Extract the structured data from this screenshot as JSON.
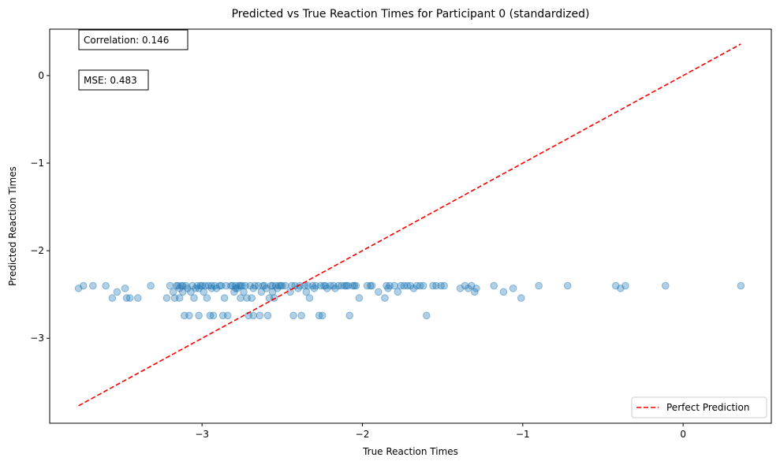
{
  "chart_data": {
    "type": "scatter",
    "title": "Predicted vs True Reaction Times for Participant 0 (standardized)",
    "xlabel": "True Reaction Times",
    "ylabel": "Predicted Reaction Times",
    "xlim": [
      -3.95,
      0.55
    ],
    "ylim": [
      -3.97,
      0.53
    ],
    "xticks": [
      -3,
      -2,
      -1,
      0
    ],
    "yticks": [
      0,
      -1,
      -2,
      -3
    ],
    "tick_labels": {
      "x": [
        "−3",
        "−2",
        "−1",
        "0"
      ],
      "y": [
        "0",
        "−1",
        "−2",
        "−3"
      ]
    },
    "grid": false,
    "legend_position": "lower-right",
    "colors": {
      "points": "#1f77b4",
      "line": "#ff0000",
      "axes": "#000000"
    },
    "annotations": [
      "Correlation: 0.146",
      "MSE: 0.483"
    ],
    "series": [
      {
        "name": "",
        "style": "scatter",
        "points": [
          [
            -3.77,
            -2.43
          ],
          [
            -3.74,
            -2.4
          ],
          [
            -3.68,
            -2.4
          ],
          [
            -3.6,
            -2.4
          ],
          [
            -3.56,
            -2.54
          ],
          [
            -3.53,
            -2.47
          ],
          [
            -3.48,
            -2.43
          ],
          [
            -3.47,
            -2.54
          ],
          [
            -3.45,
            -2.54
          ],
          [
            -3.4,
            -2.54
          ],
          [
            -3.32,
            -2.4
          ],
          [
            -3.22,
            -2.54
          ],
          [
            -3.2,
            -2.4
          ],
          [
            -3.18,
            -2.47
          ],
          [
            -3.17,
            -2.54
          ],
          [
            -3.16,
            -2.4
          ],
          [
            -3.15,
            -2.4
          ],
          [
            -3.14,
            -2.43
          ],
          [
            -3.14,
            -2.54
          ],
          [
            -3.13,
            -2.4
          ],
          [
            -3.12,
            -2.47
          ],
          [
            -3.11,
            -2.74
          ],
          [
            -3.1,
            -2.4
          ],
          [
            -3.09,
            -2.43
          ],
          [
            -3.08,
            -2.74
          ],
          [
            -3.07,
            -2.47
          ],
          [
            -3.06,
            -2.4
          ],
          [
            -3.05,
            -2.54
          ],
          [
            -3.04,
            -2.43
          ],
          [
            -3.03,
            -2.4
          ],
          [
            -3.02,
            -2.74
          ],
          [
            -3.01,
            -2.4
          ],
          [
            -3.0,
            -2.4
          ],
          [
            -2.99,
            -2.47
          ],
          [
            -2.98,
            -2.4
          ],
          [
            -2.97,
            -2.54
          ],
          [
            -2.96,
            -2.4
          ],
          [
            -2.95,
            -2.74
          ],
          [
            -2.94,
            -2.43
          ],
          [
            -2.93,
            -2.74
          ],
          [
            -2.92,
            -2.4
          ],
          [
            -2.91,
            -2.43
          ],
          [
            -2.89,
            -2.4
          ],
          [
            -2.87,
            -2.74
          ],
          [
            -2.86,
            -2.54
          ],
          [
            -2.85,
            -2.4
          ],
          [
            -2.84,
            -2.74
          ],
          [
            -2.82,
            -2.4
          ],
          [
            -2.8,
            -2.47
          ],
          [
            -2.79,
            -2.4
          ],
          [
            -2.78,
            -2.43
          ],
          [
            -2.77,
            -2.4
          ],
          [
            -2.76,
            -2.54
          ],
          [
            -2.75,
            -2.4
          ],
          [
            -2.74,
            -2.47
          ],
          [
            -2.73,
            -2.4
          ],
          [
            -2.72,
            -2.54
          ],
          [
            -2.71,
            -2.74
          ],
          [
            -2.7,
            -2.4
          ],
          [
            -2.69,
            -2.54
          ],
          [
            -2.68,
            -2.74
          ],
          [
            -2.67,
            -2.4
          ],
          [
            -2.65,
            -2.4
          ],
          [
            -2.64,
            -2.74
          ],
          [
            -2.63,
            -2.47
          ],
          [
            -2.61,
            -2.4
          ],
          [
            -2.6,
            -2.43
          ],
          [
            -2.59,
            -2.74
          ],
          [
            -2.58,
            -2.54
          ],
          [
            -2.57,
            -2.4
          ],
          [
            -2.56,
            -2.47
          ],
          [
            -2.55,
            -2.54
          ],
          [
            -2.54,
            -2.4
          ],
          [
            -2.53,
            -2.43
          ],
          [
            -2.52,
            -2.4
          ],
          [
            -2.51,
            -2.4
          ],
          [
            -2.5,
            -2.4
          ],
          [
            -2.45,
            -2.47
          ],
          [
            -2.43,
            -2.74
          ],
          [
            -2.42,
            -2.4
          ],
          [
            -2.4,
            -2.43
          ],
          [
            -2.38,
            -2.74
          ],
          [
            -2.36,
            -2.4
          ],
          [
            -2.35,
            -2.47
          ],
          [
            -2.34,
            -2.4
          ],
          [
            -2.33,
            -2.54
          ],
          [
            -2.31,
            -2.4
          ],
          [
            -2.29,
            -2.4
          ],
          [
            -2.27,
            -2.74
          ],
          [
            -2.26,
            -2.4
          ],
          [
            -2.25,
            -2.74
          ],
          [
            -2.24,
            -2.4
          ],
          [
            -2.22,
            -2.43
          ],
          [
            -2.2,
            -2.4
          ],
          [
            -2.18,
            -2.4
          ],
          [
            -2.15,
            -2.4
          ],
          [
            -2.13,
            -2.4
          ],
          [
            -2.11,
            -2.4
          ],
          [
            -2.09,
            -2.4
          ],
          [
            -2.08,
            -2.74
          ],
          [
            -2.06,
            -2.4
          ],
          [
            -2.04,
            -2.4
          ],
          [
            -2.02,
            -2.54
          ],
          [
            -1.97,
            -2.4
          ],
          [
            -1.94,
            -2.4
          ],
          [
            -1.9,
            -2.47
          ],
          [
            -1.86,
            -2.54
          ],
          [
            -1.85,
            -2.4
          ],
          [
            -1.83,
            -2.4
          ],
          [
            -1.8,
            -2.4
          ],
          [
            -1.78,
            -2.47
          ],
          [
            -1.76,
            -2.4
          ],
          [
            -1.72,
            -2.4
          ],
          [
            -1.7,
            -2.4
          ],
          [
            -1.66,
            -2.4
          ],
          [
            -1.64,
            -2.4
          ],
          [
            -1.62,
            -2.4
          ],
          [
            -1.6,
            -2.74
          ],
          [
            -1.56,
            -2.4
          ],
          [
            -1.54,
            -2.4
          ],
          [
            -1.51,
            -2.4
          ],
          [
            -1.49,
            -2.4
          ],
          [
            -1.39,
            -2.43
          ],
          [
            -1.36,
            -2.4
          ],
          [
            -1.34,
            -2.43
          ],
          [
            -1.32,
            -2.4
          ],
          [
            -1.3,
            -2.47
          ],
          [
            -1.29,
            -2.43
          ],
          [
            -1.18,
            -2.4
          ],
          [
            -1.12,
            -2.47
          ],
          [
            -1.06,
            -2.43
          ],
          [
            -1.01,
            -2.54
          ],
          [
            -0.9,
            -2.4
          ],
          [
            -0.72,
            -2.4
          ],
          [
            -0.42,
            -2.4
          ],
          [
            -0.39,
            -2.43
          ],
          [
            -0.36,
            -2.4
          ],
          [
            -0.11,
            -2.4
          ],
          [
            0.36,
            -2.4
          ],
          [
            -3.12,
            -2.4
          ],
          [
            -3.02,
            -2.43
          ],
          [
            -2.94,
            -2.4
          ],
          [
            -2.88,
            -2.4
          ],
          [
            -2.81,
            -2.4
          ],
          [
            -2.79,
            -2.43
          ],
          [
            -2.76,
            -2.4
          ],
          [
            -2.68,
            -2.43
          ],
          [
            -2.62,
            -2.4
          ],
          [
            -2.56,
            -2.4
          ],
          [
            -2.48,
            -2.4
          ],
          [
            -2.44,
            -2.4
          ],
          [
            -2.39,
            -2.4
          ],
          [
            -2.3,
            -2.43
          ],
          [
            -2.23,
            -2.4
          ],
          [
            -2.17,
            -2.43
          ],
          [
            -2.1,
            -2.4
          ],
          [
            -2.05,
            -2.4
          ],
          [
            -1.95,
            -2.4
          ],
          [
            -1.84,
            -2.43
          ],
          [
            -1.74,
            -2.4
          ],
          [
            -1.68,
            -2.43
          ]
        ]
      },
      {
        "name": "Perfect Prediction",
        "style": "dashed-line",
        "x": [
          -3.77,
          0.36
        ],
        "y": [
          -3.77,
          0.36
        ]
      }
    ]
  }
}
